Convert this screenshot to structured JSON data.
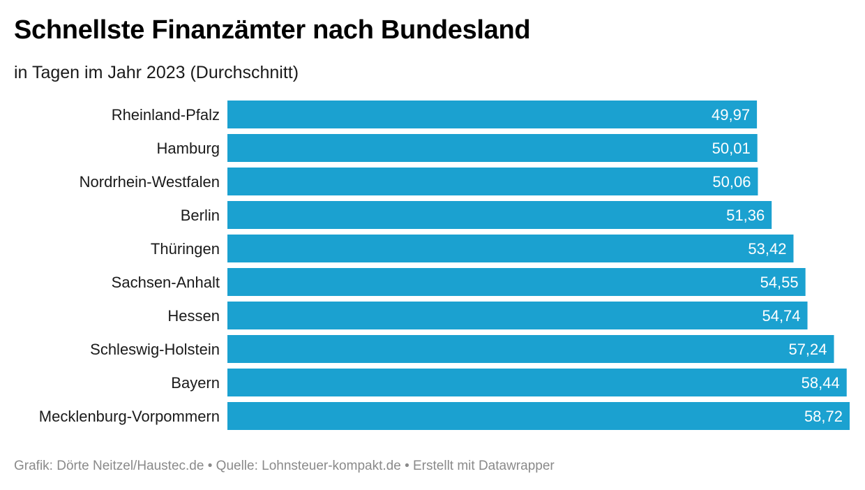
{
  "title": "Schnellste Finanzämter nach Bundesland",
  "subtitle": "in Tagen im Jahr 2023 (Durchschnitt)",
  "footer": {
    "credit": "Grafik: Dörte Neitzel/Haustec.de",
    "separator": "•",
    "source": "Quelle: Lohnsteuer-kompakt.de",
    "tool": "Erstellt mit Datawrapper"
  },
  "colors": {
    "bar": "#1ba1d0",
    "value_text": "#ffffff",
    "footer_text": "#8a8a8a"
  },
  "chart_data": {
    "type": "bar",
    "orientation": "horizontal",
    "title": "Schnellste Finanzämter nach Bundesland",
    "subtitle": "in Tagen im Jahr 2023 (Durchschnitt)",
    "categories": [
      "Rheinland-Pfalz",
      "Hamburg",
      "Nordrhein-Westfalen",
      "Berlin",
      "Thüringen",
      "Sachsen-Anhalt",
      "Hessen",
      "Schleswig-Holstein",
      "Bayern",
      "Mecklenburg-Vorpommern"
    ],
    "values": [
      49.97,
      50.01,
      50.06,
      51.36,
      53.42,
      54.55,
      54.74,
      57.24,
      58.44,
      58.72
    ],
    "value_labels": [
      "49,97",
      "50,01",
      "50,06",
      "51,36",
      "53,42",
      "54,55",
      "54,74",
      "57,24",
      "58,44",
      "58,72"
    ],
    "xlim": [
      0,
      58.72
    ],
    "grid": false,
    "legend": "none"
  }
}
